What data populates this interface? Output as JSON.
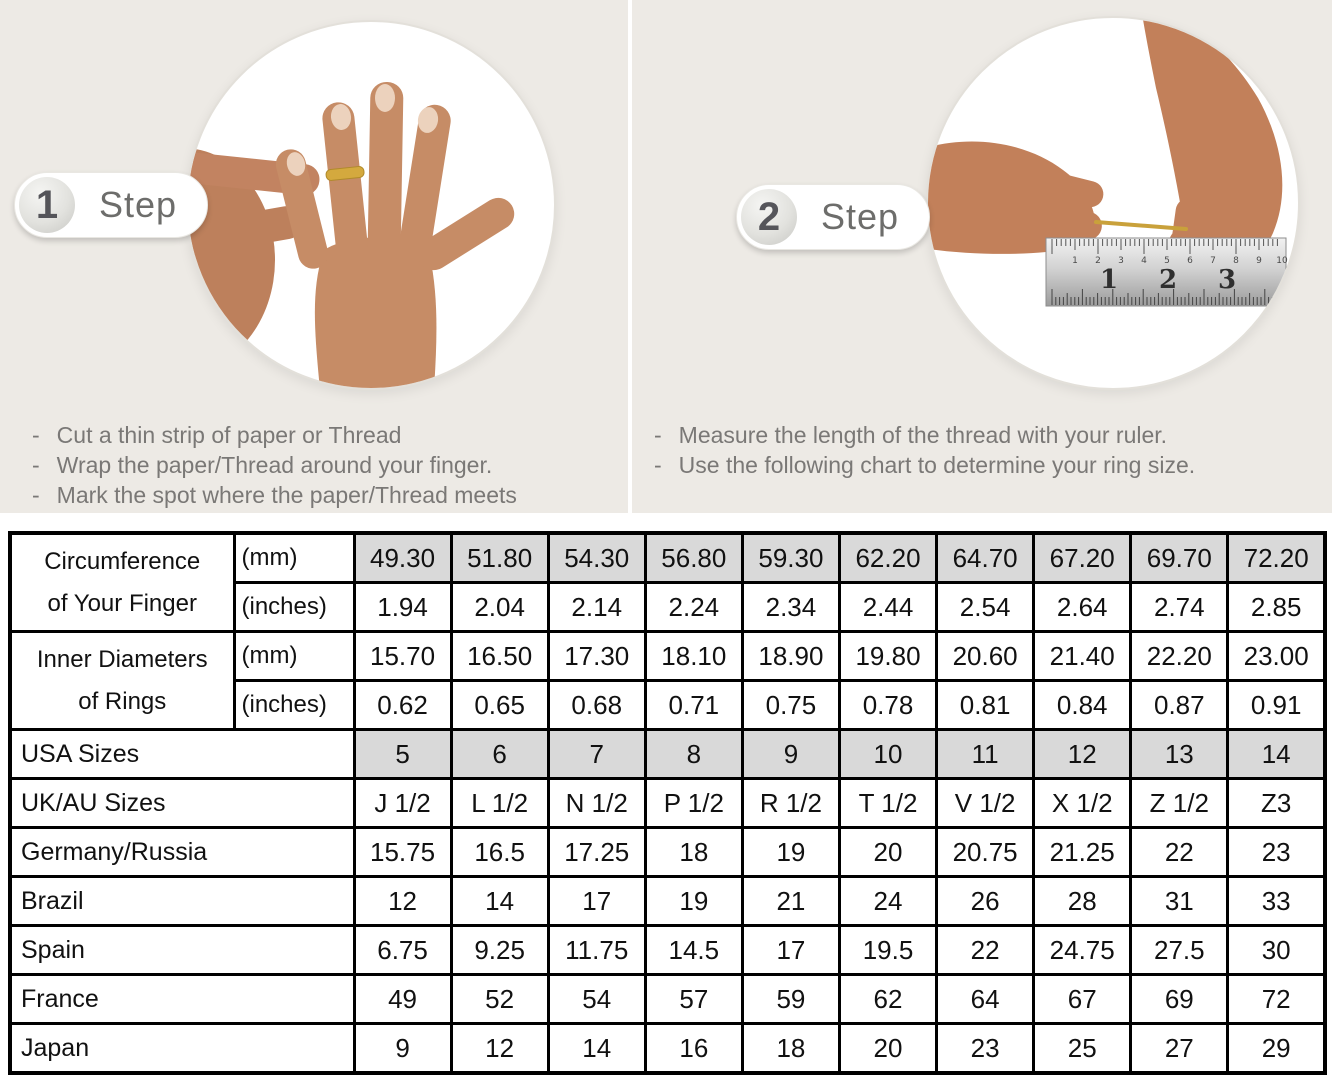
{
  "colors": {
    "panel-bg": "#edeae5",
    "shaded-cell": "#d9d9d9",
    "instruction-text": "#7a7876",
    "gold": "#cfa33c",
    "table-border": "#000000"
  },
  "steps": [
    {
      "number": "1",
      "label": "Step",
      "instructions": [
        "Cut a thin strip of paper or Thread",
        "Wrap the paper/Thread around your finger.",
        "Mark the spot where the paper/Thread meets"
      ]
    },
    {
      "number": "2",
      "label": "Step",
      "instructions": [
        "Measure the length of the thread with your ruler.",
        "Use the following chart to determine your ring size."
      ]
    }
  ],
  "ruler": {
    "inch_numbers": [
      "1",
      "2",
      "3"
    ],
    "cm_numbers": [
      "1",
      "2",
      "3",
      "4",
      "5",
      "6",
      "7",
      "8",
      "9",
      "10"
    ]
  },
  "size_chart": {
    "groups": [
      {
        "label_lines": [
          "Circumference",
          "of Your Finger"
        ],
        "rows": [
          {
            "unit": "(mm)",
            "shaded": true,
            "values": [
              "49.30",
              "51.80",
              "54.30",
              "56.80",
              "59.30",
              "62.20",
              "64.70",
              "67.20",
              "69.70",
              "72.20"
            ]
          },
          {
            "unit": "(inches)",
            "shaded": false,
            "values": [
              "1.94",
              "2.04",
              "2.14",
              "2.24",
              "2.34",
              "2.44",
              "2.54",
              "2.64",
              "2.74",
              "2.85"
            ]
          }
        ]
      },
      {
        "label_lines": [
          "Inner Diameters",
          "of Rings"
        ],
        "rows": [
          {
            "unit": "(mm)",
            "shaded": false,
            "values": [
              "15.70",
              "16.50",
              "17.30",
              "18.10",
              "18.90",
              "19.80",
              "20.60",
              "21.40",
              "22.20",
              "23.00"
            ]
          },
          {
            "unit": "(inches)",
            "shaded": false,
            "values": [
              "0.62",
              "0.65",
              "0.68",
              "0.71",
              "0.75",
              "0.78",
              "0.81",
              "0.84",
              "0.87",
              "0.91"
            ]
          }
        ]
      }
    ],
    "country_rows": [
      {
        "label": "USA Sizes",
        "shaded": true,
        "values": [
          "5",
          "6",
          "7",
          "8",
          "9",
          "10",
          "11",
          "12",
          "13",
          "14"
        ]
      },
      {
        "label": "UK/AU Sizes",
        "shaded": false,
        "values": [
          "J 1/2",
          "L 1/2",
          "N 1/2",
          "P 1/2",
          "R 1/2",
          "T 1/2",
          "V 1/2",
          "X 1/2",
          "Z 1/2",
          "Z3"
        ]
      },
      {
        "label": "Germany/Russia",
        "shaded": false,
        "values": [
          "15.75",
          "16.5",
          "17.25",
          "18",
          "19",
          "20",
          "20.75",
          "21.25",
          "22",
          "23"
        ]
      },
      {
        "label": "Brazil",
        "shaded": false,
        "values": [
          "12",
          "14",
          "17",
          "19",
          "21",
          "24",
          "26",
          "28",
          "31",
          "33"
        ]
      },
      {
        "label": "Spain",
        "shaded": false,
        "values": [
          "6.75",
          "9.25",
          "11.75",
          "14.5",
          "17",
          "19.5",
          "22",
          "24.75",
          "27.5",
          "30"
        ]
      },
      {
        "label": "France",
        "shaded": false,
        "values": [
          "49",
          "52",
          "54",
          "57",
          "59",
          "62",
          "64",
          "67",
          "69",
          "72"
        ]
      },
      {
        "label": "Japan",
        "shaded": false,
        "values": [
          "9",
          "12",
          "14",
          "16",
          "18",
          "20",
          "23",
          "25",
          "27",
          "29"
        ]
      }
    ]
  }
}
